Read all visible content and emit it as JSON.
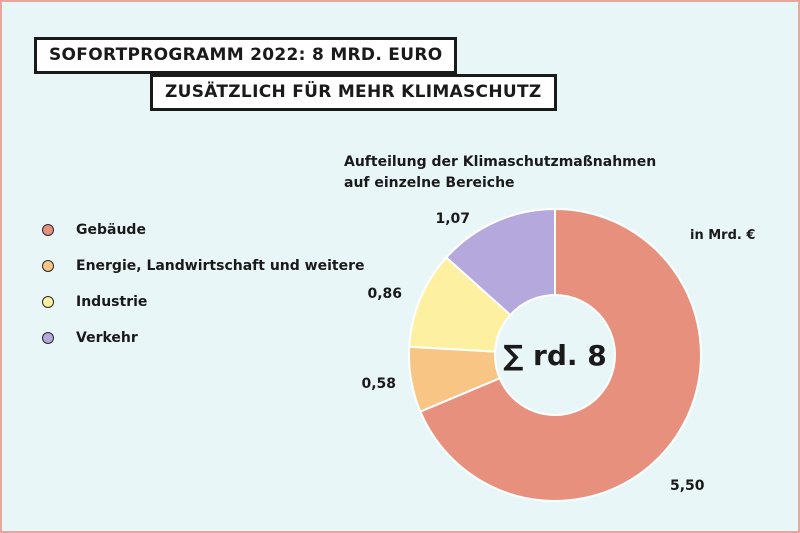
{
  "header": {
    "title_line1": "SOFORTPROGRAMM 2022: 8 MRD. EURO",
    "title_line2": "ZUSÄTZLICH FÜR MEHR KLIMASCHUTZ"
  },
  "chart_data": {
    "type": "pie",
    "variant": "donut",
    "subtitle_line1": "Aufteilung der Klimaschutzmaßnahmen",
    "subtitle_line2": "auf einzelne Bereiche",
    "unit": "in Mrd. €",
    "center_label": "∑ rd. 8",
    "legend_position": "left",
    "categories": [
      "Gebäude",
      "Energie, Landwirtschaft und weitere",
      "Industrie",
      "Verkehr"
    ],
    "values": [
      5.5,
      0.58,
      0.86,
      1.07
    ],
    "value_labels": [
      "5,50",
      "0,58",
      "0,86",
      "1,07"
    ],
    "colors": [
      "#e8907e",
      "#f9c584",
      "#fdf0a0",
      "#b4a8dc"
    ]
  }
}
